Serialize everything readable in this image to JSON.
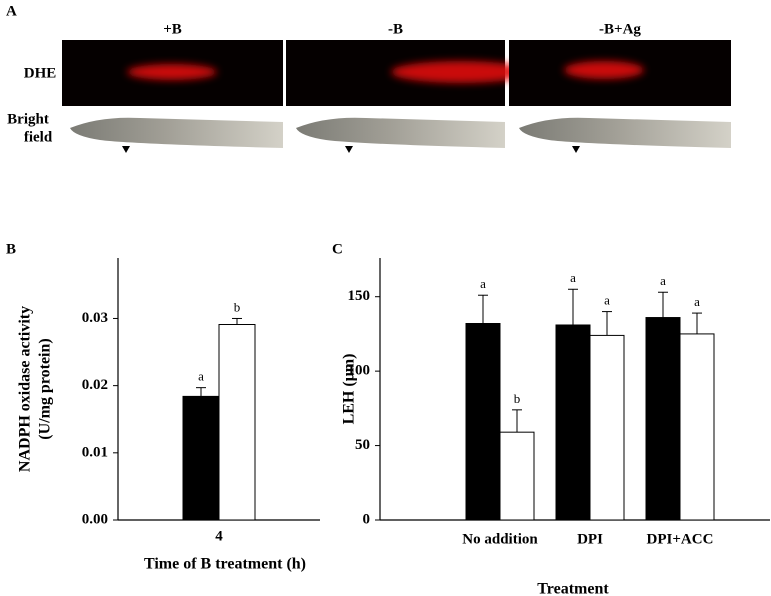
{
  "panel_a": {
    "label": "A",
    "columns": [
      "+B",
      "-B",
      "-B+Ag"
    ],
    "rows": [
      [
        "DHE"
      ],
      [
        "Bright",
        "field"
      ]
    ]
  },
  "chart_data": [
    {
      "type": "bar",
      "panel": "B",
      "ylabel": [
        "NADPH oxidase activity",
        "(U/mg protein)"
      ],
      "xlabel": "Time of B treatment (h)",
      "categories": [
        "4"
      ],
      "series": [
        {
          "color": "#000000",
          "values": [
            0.0184
          ],
          "errors": [
            0.0013
          ],
          "letters": [
            "a"
          ]
        },
        {
          "color": "#ffffff",
          "values": [
            0.0291
          ],
          "errors": [
            0.0009
          ],
          "letters": [
            "b"
          ]
        }
      ],
      "ylim": [
        0,
        0.039
      ],
      "yticks": [
        {
          "value": 0,
          "label": "0.00"
        },
        {
          "value": 0.01,
          "label": "0.01"
        },
        {
          "value": 0.02,
          "label": "0.02"
        },
        {
          "value": 0.03,
          "label": "0.03"
        }
      ]
    },
    {
      "type": "bar",
      "panel": "C",
      "ylabel": [
        "LEH (μm)"
      ],
      "xlabel": "Treatment",
      "categories": [
        "No addition",
        "DPI",
        "DPI+ACC"
      ],
      "series": [
        {
          "color": "#000000",
          "values": [
            132,
            131,
            136
          ],
          "errors": [
            19,
            24,
            17
          ],
          "letters": [
            "a",
            "a",
            "a"
          ]
        },
        {
          "color": "#ffffff",
          "values": [
            59,
            124,
            125
          ],
          "errors": [
            15,
            16,
            14
          ],
          "letters": [
            "b",
            "a",
            "a"
          ]
        }
      ],
      "ylim": [
        0,
        176
      ],
      "yticks": [
        0,
        50,
        100,
        150
      ]
    }
  ]
}
